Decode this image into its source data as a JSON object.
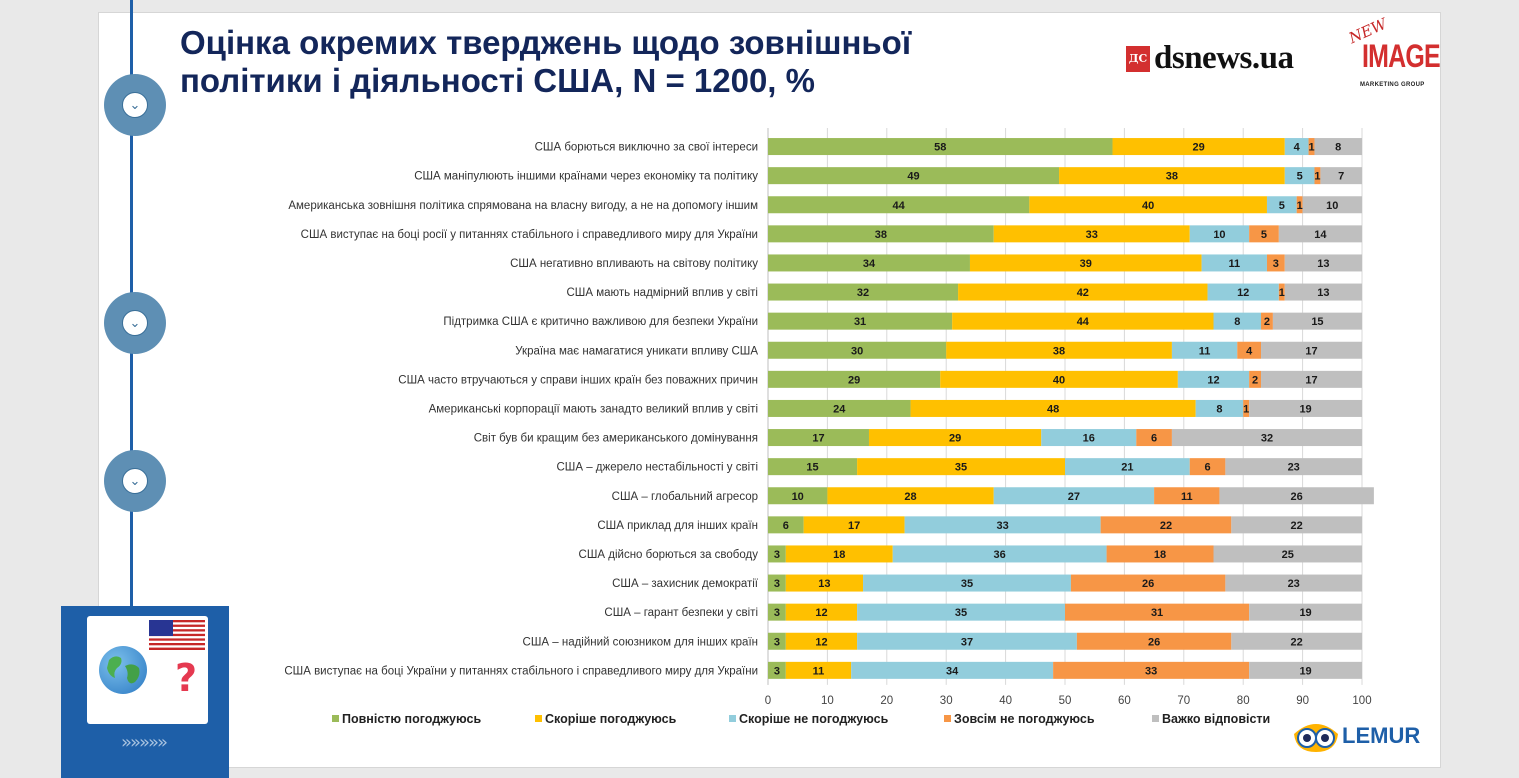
{
  "title": "Оцінка окремих тверджень щодо зовнішньої політики і діяльності США, N = 1200, %",
  "logos": {
    "ds_mark": "ДС",
    "ds_text": "dsnews.ua",
    "new": "NEW",
    "image": "IMAGE",
    "marketing_group": "MARKETING GROUP",
    "lemur": "LEMUR"
  },
  "timeline": {
    "node_icon": "chevron-down-icon",
    "nodes": 3
  },
  "side_panel": {
    "icons": [
      "us-flag-icon",
      "globe-icon",
      "question-mark-icon"
    ],
    "arrows": "»»»»»"
  },
  "colors": {
    "full_agree": "#9bbb59",
    "rather_agree": "#ffc000",
    "rather_disagree": "#92cddc",
    "full_disagree": "#f79646",
    "hard_to_say": "#bfbfbf",
    "title": "#13265a",
    "timeline": "#1e5fa8"
  },
  "chart_data": {
    "type": "bar",
    "orientation": "horizontal",
    "stacked": true,
    "categories": [
      "США борються виключно за свої інтереси",
      "США маніпулюють іншими країнами через економіку та політику",
      "Американська зовнішня політика спрямована на власну вигоду, а не на допомогу іншим",
      "США виступає на боці росії у питаннях стабільного і справедливого миру для України",
      "США негативно впливають на світову політику",
      "США мають надмірний вплив у світі",
      "Підтримка США є критично важливою для безпеки України",
      "Україна має намагатися уникати впливу США",
      "США часто втручаються у справи інших країн без поважних причин",
      "Американські корпорації мають занадто великий вплив у світі",
      "Світ був би кращим без американського домінування",
      "США – джерело нестабільності у світі",
      "США –  глобальний агресор",
      "США приклад для інших країн",
      "США дійсно борються за свободу",
      "США –  захисник демократії",
      "США – гарант безпеки у світі",
      "США – надійний союзником для інших країн",
      "США виступає на боці України у питаннях стабільного і справедливого миру для України"
    ],
    "series": [
      {
        "name": "Повністю погоджуюсь",
        "color": "#9bbb59",
        "values": [
          58,
          49,
          44,
          38,
          34,
          32,
          31,
          30,
          29,
          24,
          17,
          15,
          10,
          6,
          3,
          3,
          3,
          3,
          3
        ]
      },
      {
        "name": "Скоріше погоджуюсь",
        "color": "#ffc000",
        "values": [
          29,
          38,
          40,
          33,
          39,
          42,
          44,
          38,
          40,
          48,
          29,
          35,
          28,
          17,
          18,
          13,
          12,
          12,
          11
        ]
      },
      {
        "name": "Скоріше не погоджуюсь",
        "color": "#92cddc",
        "values": [
          4,
          5,
          5,
          10,
          11,
          12,
          8,
          11,
          12,
          8,
          16,
          21,
          27,
          33,
          36,
          35,
          35,
          37,
          34
        ]
      },
      {
        "name": "Зовсім не погоджуюсь",
        "color": "#f79646",
        "values": [
          1,
          1,
          1,
          5,
          3,
          1,
          2,
          4,
          2,
          1,
          6,
          6,
          11,
          22,
          18,
          26,
          31,
          26,
          33
        ]
      },
      {
        "name": "Важко відповісти",
        "color": "#bfbfbf",
        "values": [
          8,
          7,
          10,
          14,
          13,
          13,
          15,
          17,
          17,
          19,
          32,
          23,
          26,
          22,
          25,
          23,
          19,
          22,
          19
        ]
      }
    ],
    "xlim": [
      0,
      100
    ],
    "xticks": [
      "0",
      "10",
      "20",
      "30",
      "40",
      "50",
      "60",
      "70",
      "80",
      "90",
      "100"
    ],
    "gridlines": true,
    "data_labels": true,
    "legend_position": "bottom"
  }
}
